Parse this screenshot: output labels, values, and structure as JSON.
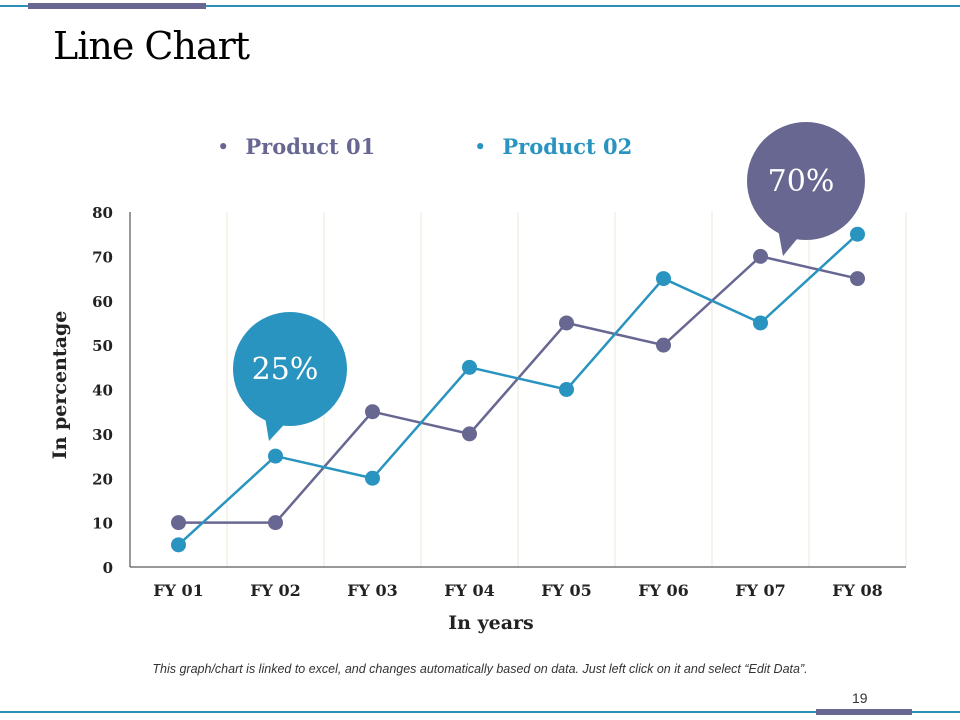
{
  "page": {
    "title": "Line Chart",
    "footnote": "This graph/chart is linked to excel, and changes automatically based on data.  Just left click on it and select “Edit Data”.",
    "page_number": "19"
  },
  "colors": {
    "product01": "#676792",
    "product02": "#2894bf",
    "accent_bar": "#676792",
    "rule": "#2e8fb4",
    "grid": "#e8e8d8"
  },
  "chart_data": {
    "type": "line",
    "title": "",
    "xlabel": "In years",
    "ylabel": "In percentage",
    "categories": [
      "FY 01",
      "FY 02",
      "FY 03",
      "FY 04",
      "FY 05",
      "FY 06",
      "FY 07",
      "FY 08"
    ],
    "ylim": [
      0,
      80
    ],
    "yticks": [
      0,
      10,
      20,
      30,
      40,
      50,
      60,
      70,
      80
    ],
    "legend_position": "top",
    "series": [
      {
        "name": "Product 01",
        "color": "#676792",
        "values": [
          10,
          10,
          35,
          30,
          55,
          50,
          70,
          65
        ]
      },
      {
        "name": "Product 02",
        "color": "#2894bf",
        "values": [
          5,
          25,
          20,
          45,
          40,
          65,
          55,
          75
        ]
      }
    ],
    "annotations": [
      {
        "text": "25%",
        "series": "Product 02",
        "category": "FY 02",
        "color": "#2894bf"
      },
      {
        "text": "70%",
        "series": "Product 01",
        "category": "FY 07",
        "color": "#676792"
      }
    ]
  }
}
